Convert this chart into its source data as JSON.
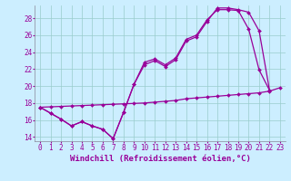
{
  "bg_color": "#cceeff",
  "line_color": "#990099",
  "grid_color": "#99cccc",
  "xlabel": "Windchill (Refroidissement éolien,°C)",
  "ylim": [
    13.5,
    29.5
  ],
  "xlim": [
    -0.5,
    23.5
  ],
  "yticks": [
    14,
    16,
    18,
    20,
    22,
    24,
    26,
    28
  ],
  "tick_fontsize": 5.5,
  "xlabel_fontsize": 6.5,
  "line_low": [
    17.5,
    16.8,
    16.1,
    15.3,
    15.8,
    15.3,
    14.9,
    13.8,
    16.9,
    20.2,
    22.8,
    23.2,
    22.5,
    23.3,
    25.5,
    26.0,
    27.8,
    29.0,
    29.0,
    28.9,
    26.7,
    21.9,
    19.5,
    null
  ],
  "line_mid": [
    17.5,
    16.8,
    16.1,
    15.3,
    15.8,
    15.3,
    14.9,
    13.8,
    16.9,
    20.2,
    22.5,
    23.0,
    22.3,
    23.1,
    25.3,
    25.8,
    27.6,
    29.2,
    29.2,
    29.0,
    28.7,
    26.5,
    19.5,
    null
  ],
  "line_diag": [
    17.5,
    17.55,
    17.6,
    17.65,
    17.7,
    17.75,
    17.8,
    17.85,
    17.9,
    17.95,
    18.0,
    18.1,
    18.2,
    18.3,
    18.5,
    18.6,
    18.7,
    18.8,
    18.9,
    19.0,
    19.1,
    19.2,
    19.4,
    19.8
  ]
}
